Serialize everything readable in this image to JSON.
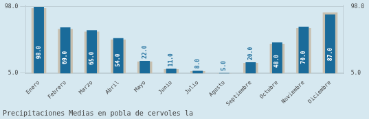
{
  "chart_data": {
    "type": "bar",
    "title": "Precipitaciones Medias en pobla de cervoles la",
    "categories": [
      "Enero",
      "Febrero",
      "Marzo",
      "Abril",
      "Mayo",
      "Junio",
      "Julio",
      "Agosto",
      "Septiembre",
      "Octubre",
      "Noviembre",
      "Diciembre"
    ],
    "series": [
      {
        "color": "#c8c0b0",
        "values": [
          96.0,
          67.0,
          63.0,
          52.0,
          21.0,
          10.5,
          7.5,
          4.5,
          19.0,
          46.0,
          68.0,
          90.0
        ]
      },
      {
        "color": "#1a6b9a",
        "values": [
          98.0,
          69.0,
          65.0,
          54.0,
          22.0,
          11.0,
          8.0,
          5.0,
          20.0,
          48.0,
          70.0,
          87.0
        ],
        "value_labels": [
          "98.0",
          "69.0",
          "65.0",
          "54.0",
          "22.0",
          "11.0",
          "8.0",
          "5.0",
          "20.0",
          "48.0",
          "70.0",
          "87.0"
        ]
      }
    ],
    "ylim": [
      4.5,
      100
    ],
    "yticks": [
      {
        "value": 5,
        "label": "5.0"
      },
      {
        "value": 98,
        "label": "98.0"
      }
    ],
    "y2lim": [
      4.5,
      100
    ],
    "y2ticks": [
      {
        "value": 5,
        "label": "5.0"
      },
      {
        "value": 98,
        "label": "98.0"
      }
    ],
    "grid": true,
    "data_labels": true
  }
}
